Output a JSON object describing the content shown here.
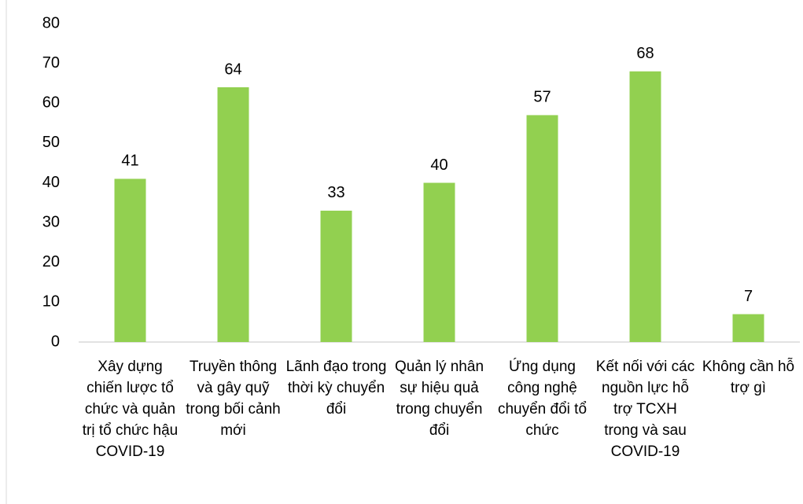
{
  "chart_data": {
    "type": "bar",
    "categories": [
      "Xây dựng chiến lược tổ chức và quản trị tổ chức hậu COVID-19",
      "Truyền thông và gây quỹ trong bối cảnh mới",
      "Lãnh đạo trong thời kỳ chuyển đổi",
      "Quản lý nhân sự hiệu quả trong chuyển đổi",
      "Ứng dụng công nghệ chuyển đổi tổ chức",
      "Kết nối với các nguồn lực hỗ trợ TCXH trong và sau COVID-19",
      "Không cần hỗ trợ gì"
    ],
    "values": [
      41,
      64,
      33,
      40,
      57,
      68,
      7
    ],
    "color": "#92d050",
    "ylim": [
      0,
      80
    ],
    "yticks": [
      0,
      10,
      20,
      30,
      40,
      50,
      60,
      70,
      80
    ],
    "grid": false
  }
}
